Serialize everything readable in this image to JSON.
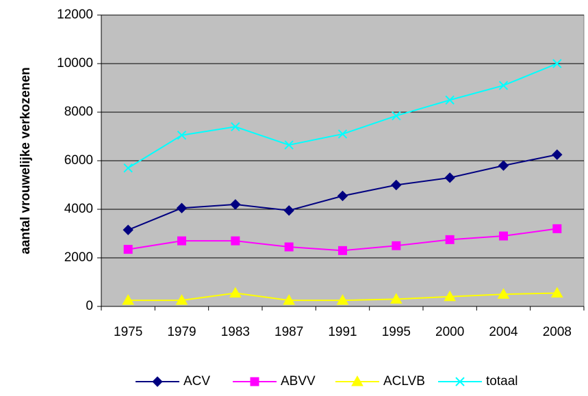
{
  "chart_data": {
    "type": "line",
    "y_label": "aantal vrouwelijke verkozenen",
    "categories": [
      "1975",
      "1979",
      "1983",
      "1987",
      "1991",
      "1995",
      "2000",
      "2004",
      "2008"
    ],
    "series": [
      {
        "name": "ACV",
        "color": "#000080",
        "marker": "diamond",
        "values": [
          3150,
          4050,
          4200,
          3950,
          4550,
          5000,
          5300,
          5800,
          6250
        ]
      },
      {
        "name": "ABVV",
        "color": "#ff00ff",
        "marker": "square",
        "values": [
          2350,
          2700,
          2700,
          2450,
          2300,
          2500,
          2750,
          2900,
          3200
        ]
      },
      {
        "name": "ACLVB",
        "color": "#ffff00",
        "marker": "triangle",
        "values": [
          250,
          250,
          550,
          250,
          250,
          300,
          400,
          500,
          550
        ]
      },
      {
        "name": "totaal",
        "color": "#00ffff",
        "marker": "x",
        "values": [
          5700,
          7050,
          7400,
          6650,
          7100,
          7850,
          8500,
          9100,
          10000
        ]
      }
    ],
    "ylim": [
      0,
      12000
    ],
    "yticks": [
      0,
      2000,
      4000,
      6000,
      8000,
      10000,
      12000
    ],
    "grid": true,
    "plot_background": "#c0c0c0",
    "legend": "bottom"
  }
}
